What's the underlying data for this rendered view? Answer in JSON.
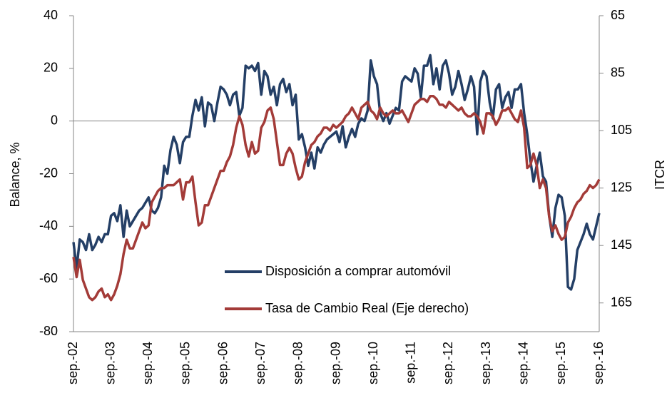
{
  "chart_data": {
    "type": "line",
    "y_label": "Balance, %",
    "y2_label": "ITCR",
    "categories": [
      "sep.-02",
      null,
      null,
      null,
      null,
      null,
      null,
      null,
      null,
      null,
      null,
      null,
      "sep.-03",
      null,
      null,
      null,
      null,
      null,
      null,
      null,
      null,
      null,
      null,
      null,
      "sep.-04",
      null,
      null,
      null,
      null,
      null,
      null,
      null,
      null,
      null,
      null,
      null,
      "sep.-05",
      null,
      null,
      null,
      null,
      null,
      null,
      null,
      null,
      null,
      null,
      null,
      "sep.-06",
      null,
      null,
      null,
      null,
      null,
      null,
      null,
      null,
      null,
      null,
      null,
      "sep.-07",
      null,
      null,
      null,
      null,
      null,
      null,
      null,
      null,
      null,
      null,
      null,
      "sep.-08",
      null,
      null,
      null,
      null,
      null,
      null,
      null,
      null,
      null,
      null,
      null,
      "sep.-09",
      null,
      null,
      null,
      null,
      null,
      null,
      null,
      null,
      null,
      null,
      null,
      "sep.-10",
      null,
      null,
      null,
      null,
      null,
      null,
      null,
      null,
      null,
      null,
      null,
      "sep.-11",
      null,
      null,
      null,
      null,
      null,
      null,
      null,
      null,
      null,
      null,
      null,
      "sep.-12",
      null,
      null,
      null,
      null,
      null,
      null,
      null,
      null,
      null,
      null,
      null,
      "sep.-13",
      null,
      null,
      null,
      null,
      null,
      null,
      null,
      null,
      null,
      null,
      null,
      "sep.-14",
      null,
      null,
      null,
      null,
      null,
      null,
      null,
      null,
      null,
      null,
      null,
      "sep.-15",
      null,
      null,
      null,
      null,
      null,
      null,
      null,
      null,
      null,
      null,
      null,
      "sep.-16"
    ],
    "series": [
      {
        "name": "Disposición a comprar automóvil",
        "color": "#243f66",
        "axis": "y",
        "values": [
          -46,
          -56,
          -45,
          -46,
          -49,
          -43,
          -49,
          -47,
          -44,
          -46,
          -43,
          -43,
          -36,
          -35,
          -38,
          -32,
          -44,
          -34,
          -40,
          -38,
          -36,
          -34,
          -33,
          -31,
          -29,
          -34,
          -35,
          -33,
          -29,
          -17,
          -20,
          -11,
          -6,
          -9,
          -16,
          -8,
          -6,
          -6,
          2,
          8,
          4,
          9,
          -2,
          7,
          6,
          0,
          7,
          13,
          12,
          10,
          6,
          10,
          11,
          2,
          5,
          21,
          20,
          21,
          19,
          22,
          10,
          19,
          17,
          10,
          13,
          6,
          14,
          16,
          11,
          14,
          6,
          10,
          -7,
          -5,
          -10,
          -17,
          -12,
          -18,
          -10,
          -12,
          -9,
          -7,
          -6,
          -5,
          -4,
          -8,
          -2,
          -10,
          -6,
          -3,
          -6,
          -1,
          1,
          0,
          4,
          23,
          17,
          14,
          3,
          0,
          3,
          -1,
          2,
          5,
          4,
          15,
          17,
          16,
          15,
          20,
          18,
          9,
          21,
          21,
          25,
          14,
          20,
          12,
          21,
          23,
          18,
          10,
          13,
          19,
          14,
          8,
          12,
          17,
          13,
          -5,
          15,
          19,
          17,
          7,
          1,
          12,
          14,
          5,
          9,
          11,
          5,
          12,
          12,
          14,
          3,
          -5,
          -15,
          -23,
          -17,
          -12,
          -21,
          -23,
          -36,
          -44,
          -33,
          -28,
          -29,
          -36,
          -63,
          -64,
          -60,
          -49,
          -46,
          -43,
          -39,
          -43,
          -45,
          -40,
          -35
        ]
      },
      {
        "name": "Tasa de Cambio Real (Eje derecho)",
        "color": "#a33b38",
        "axis": "y2",
        "values": [
          149,
          156,
          150,
          157,
          160,
          163,
          164,
          163,
          161,
          160,
          163,
          162,
          164,
          162,
          159,
          155,
          148,
          143,
          146,
          146,
          143,
          140,
          137,
          139,
          138,
          130,
          128,
          126,
          125,
          125,
          124,
          124,
          124,
          123,
          122,
          129,
          123,
          123,
          121,
          130,
          138,
          137,
          131,
          131,
          128,
          125,
          122,
          119,
          119,
          116,
          114,
          110,
          104,
          100,
          103,
          110,
          114,
          109,
          113,
          112,
          104,
          102,
          98,
          97,
          101,
          109,
          117,
          117,
          113,
          111,
          113,
          118,
          122,
          121,
          116,
          113,
          110,
          109,
          107,
          106,
          104,
          104,
          105,
          103,
          104,
          103,
          102,
          100,
          99,
          97,
          99,
          101,
          97,
          96,
          95,
          98,
          99,
          101,
          97,
          99,
          100,
          99,
          98,
          99,
          99,
          98,
          100,
          102,
          99,
          96,
          95,
          94,
          94,
          95,
          93,
          93,
          94,
          96,
          96,
          97,
          95,
          96,
          97,
          98,
          97,
          99,
          100,
          100,
          99,
          100,
          102,
          106,
          99,
          99,
          100,
          103,
          101,
          98,
          98,
          97,
          99,
          101,
          102,
          98,
          104,
          118,
          117,
          113,
          117,
          125,
          122,
          125,
          135,
          140,
          138,
          141,
          143,
          142,
          137,
          135,
          132,
          130,
          129,
          127,
          126,
          124,
          125,
          124,
          122
        ]
      }
    ],
    "ylim": [
      -80,
      40
    ],
    "yticks": [
      -80,
      -60,
      -40,
      -20,
      0,
      20,
      40
    ],
    "y2lim": [
      175,
      65
    ],
    "y2ticks": [
      65,
      85,
      105,
      125,
      145,
      165
    ],
    "zero_line": true,
    "grid": false,
    "legend": "bottom-center"
  }
}
